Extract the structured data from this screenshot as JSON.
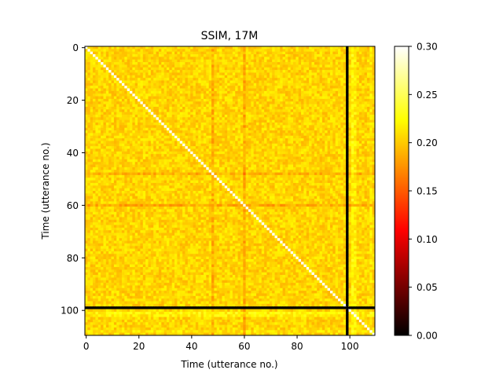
{
  "chart_data": {
    "type": "heatmap",
    "title": "SSIM, 17M",
    "xlabel": "Time (utterance no.)",
    "ylabel": "Time (utterance no.)",
    "size": 110,
    "xlim": [
      0,
      110
    ],
    "ylim": [
      110,
      0
    ],
    "x_ticks": [
      0,
      20,
      40,
      60,
      80,
      100
    ],
    "y_ticks": [
      0,
      20,
      40,
      60,
      80,
      100
    ],
    "colormap": "hot",
    "colorbar": {
      "vmin": 0.0,
      "vmax": 0.3,
      "ticks": [
        "0.00",
        "0.05",
        "0.10",
        "0.15",
        "0.20",
        "0.25",
        "0.30"
      ]
    },
    "base_value": 0.205,
    "diagonal_value": 0.3,
    "low_similarity_utterances": [
      {
        "index": 48,
        "value": 0.185
      },
      {
        "index": 60,
        "value": 0.18
      }
    ],
    "high_similarity_utterances": [
      {
        "index": 101,
        "value": 0.225
      },
      {
        "index": 102,
        "value": 0.22
      },
      {
        "index": 108,
        "value": 0.215
      }
    ],
    "marker_line": {
      "index": 99,
      "color": "#000000"
    }
  }
}
